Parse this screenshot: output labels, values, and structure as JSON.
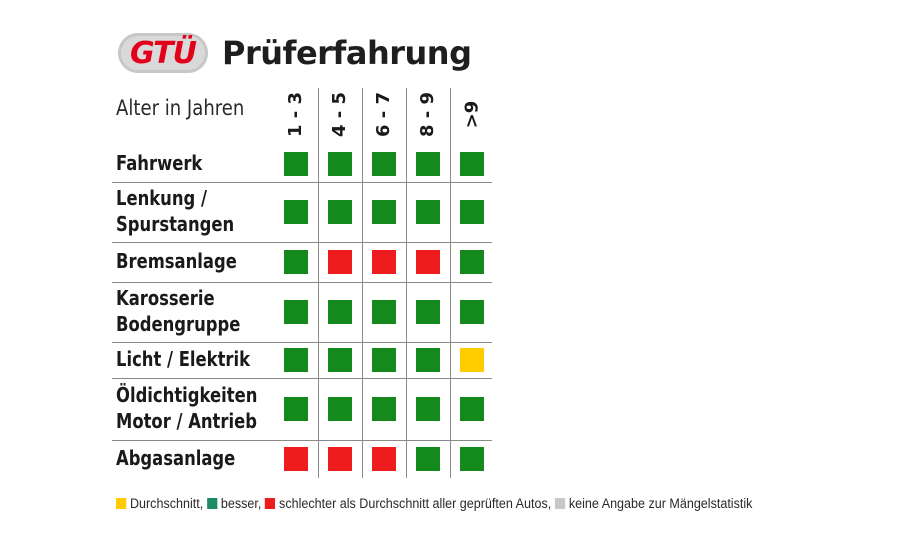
{
  "logo": {
    "text": "GTÜ"
  },
  "title": "Prüferfahrung",
  "age_label": "Alter in Jahren",
  "columns": [
    "1 - 3",
    "4 - 5",
    "6 - 7",
    "8 - 9",
    ">9"
  ],
  "colors": {
    "green": "#158a1c",
    "red": "#ee1c1c",
    "yellow": "#ffcc00",
    "legend_green": "#1e8a67",
    "grey": "#c8c8c8"
  },
  "rows": [
    {
      "label": "Fahrwerk",
      "cells": [
        "green",
        "green",
        "green",
        "green",
        "green"
      ]
    },
    {
      "label": "Lenkung /\nSpurstangen",
      "cells": [
        "green",
        "green",
        "green",
        "green",
        "green"
      ]
    },
    {
      "label": "Bremsanlage",
      "cells": [
        "green",
        "red",
        "red",
        "red",
        "green"
      ]
    },
    {
      "label": "Karosserie\nBodengruppe",
      "cells": [
        "green",
        "green",
        "green",
        "green",
        "green"
      ]
    },
    {
      "label": "Licht / Elektrik",
      "cells": [
        "green",
        "green",
        "green",
        "green",
        "yellow"
      ]
    },
    {
      "label": "Öldichtigkeiten\nMotor / Antrieb",
      "cells": [
        "green",
        "green",
        "green",
        "green",
        "green"
      ]
    },
    {
      "label": "Abgasanlage",
      "cells": [
        "red",
        "red",
        "red",
        "green",
        "green"
      ]
    }
  ],
  "legend": [
    {
      "color": "yellow",
      "text": "Durchschnitt,"
    },
    {
      "color": "legend_green",
      "text": "besser,"
    },
    {
      "color": "red",
      "text": "schlechter als Durchschnitt aller geprüften Autos,"
    },
    {
      "color": "grey",
      "text": "keine Angabe zur Mängelstatistik"
    }
  ]
}
